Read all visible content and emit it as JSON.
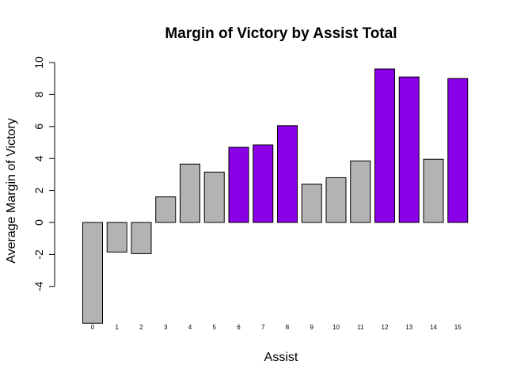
{
  "chart_data": {
    "type": "bar",
    "title": "Margin of Victory by Assist Total",
    "xlabel": "Assist",
    "ylabel": "Average Margin of Victory",
    "categories": [
      "0",
      "1",
      "2",
      "3",
      "4",
      "5",
      "6",
      "7",
      "8",
      "9",
      "10",
      "11",
      "12",
      "13",
      "14",
      "15"
    ],
    "values": [
      -6.3,
      -1.85,
      -1.95,
      1.6,
      3.65,
      3.15,
      4.7,
      4.85,
      6.05,
      2.4,
      2.8,
      3.85,
      9.6,
      9.1,
      3.95,
      9.0
    ],
    "highlighted": [
      false,
      false,
      false,
      false,
      false,
      false,
      true,
      true,
      true,
      false,
      false,
      false,
      true,
      true,
      false,
      true
    ],
    "yticks": [
      -4,
      -2,
      0,
      2,
      4,
      6,
      8,
      10
    ],
    "ylim": [
      -6.3,
      10
    ],
    "grid": false,
    "legend": "none",
    "colors": {
      "default_bar": "#b3b3b3",
      "highlight_bar": "#8a00e6",
      "stroke": "#000000"
    }
  }
}
